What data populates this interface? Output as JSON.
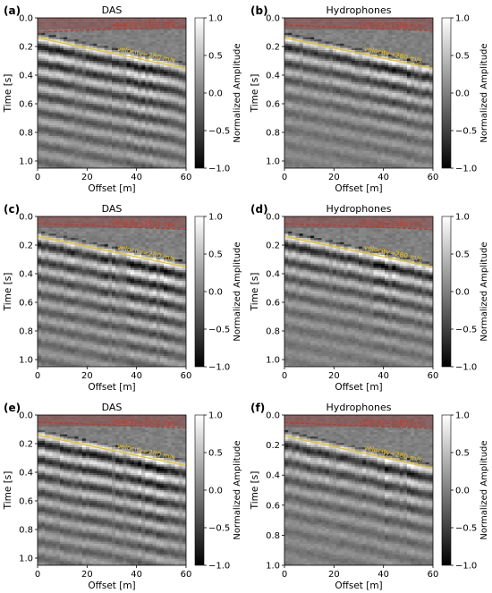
{
  "figure": {
    "xlabel": "Offset [m]",
    "ylabel": "Time [s]",
    "colorbar_label": "Normalized Amplitude",
    "colorbar_ticks": [
      "1.0",
      "0.5",
      "0.0",
      "−0.5",
      "−1.0"
    ],
    "colors": {
      "velocity_1500_line": "#c0392b",
      "velocity_280_line": "#e6c229",
      "background_gray": "#808080"
    }
  },
  "chart_data": [
    {
      "type": "heatmap",
      "panel": "(a)",
      "title": "DAS",
      "xlim": [
        0,
        60
      ],
      "ylim": [
        1.05,
        0.0
      ],
      "xticks": [
        0,
        20,
        40,
        60
      ],
      "yticks": [
        0.0,
        0.2,
        0.4,
        0.6,
        0.8,
        1.0
      ],
      "colorbar_range": [
        -1.0,
        1.0
      ],
      "annotations": [
        {
          "label": "velocity=1500 m/s",
          "x": [
            0,
            60
          ],
          "t": [
            0.1,
            0.06
          ]
        },
        {
          "label": "velocity=280 m/s",
          "x": [
            0,
            60
          ],
          "t": [
            0.14,
            0.355
          ]
        }
      ]
    },
    {
      "type": "heatmap",
      "panel": "(b)",
      "title": "Hydrophones",
      "xlim": [
        0,
        60
      ],
      "ylim": [
        1.05,
        0.0
      ],
      "xticks": [
        0,
        20,
        40,
        60
      ],
      "yticks": [
        0.0,
        0.2,
        0.4,
        0.6,
        0.8,
        1.0
      ],
      "colorbar_range": [
        -1.0,
        1.0
      ],
      "annotations": [
        {
          "label": "velocity=1500 m/s",
          "x": [
            0,
            60
          ],
          "t": [
            0.05,
            0.09
          ]
        },
        {
          "label": "velocity=280 m/s",
          "x": [
            0,
            60
          ],
          "t": [
            0.14,
            0.355
          ]
        }
      ]
    },
    {
      "type": "heatmap",
      "panel": "(c)",
      "title": "DAS",
      "xlim": [
        0,
        60
      ],
      "ylim": [
        1.05,
        0.0
      ],
      "xticks": [
        0,
        20,
        40,
        60
      ],
      "yticks": [
        0.0,
        0.2,
        0.4,
        0.6,
        0.8,
        1.0
      ],
      "colorbar_range": [
        -1.0,
        1.0
      ],
      "annotations": [
        {
          "label": "velocity=1500 m/s",
          "x": [
            0,
            60
          ],
          "t": [
            0.05,
            0.09
          ]
        },
        {
          "label": "velocity=280 m/s",
          "x": [
            0,
            60
          ],
          "t": [
            0.14,
            0.355
          ]
        }
      ]
    },
    {
      "type": "heatmap",
      "panel": "(d)",
      "title": "Hydrophones",
      "xlim": [
        0,
        60
      ],
      "ylim": [
        1.05,
        0.0
      ],
      "xticks": [
        0,
        20,
        40,
        60
      ],
      "yticks": [
        0.0,
        0.2,
        0.4,
        0.6,
        0.8,
        1.0
      ],
      "colorbar_range": [
        -1.0,
        1.0
      ],
      "annotations": [
        {
          "label": "velocity=1500 m/s",
          "x": [
            0,
            60
          ],
          "t": [
            0.05,
            0.09
          ]
        },
        {
          "label": "velocity=280 m/s",
          "x": [
            0,
            60
          ],
          "t": [
            0.14,
            0.355
          ]
        }
      ]
    },
    {
      "type": "heatmap",
      "panel": "(e)",
      "title": "DAS",
      "xlim": [
        0,
        60
      ],
      "ylim": [
        1.05,
        0.0
      ],
      "xticks": [
        0,
        20,
        40,
        60
      ],
      "yticks": [
        0.0,
        0.2,
        0.4,
        0.6,
        0.8,
        1.0
      ],
      "colorbar_range": [
        -1.0,
        1.0
      ],
      "annotations": [
        {
          "label": "velocity=1500 m/s",
          "x": [
            0,
            60
          ],
          "t": [
            0.05,
            0.09
          ]
        },
        {
          "label": "velocity=280 m/s",
          "x": [
            0,
            60
          ],
          "t": [
            0.14,
            0.355
          ]
        }
      ]
    },
    {
      "type": "heatmap",
      "panel": "(f)",
      "title": "Hydrophones",
      "xlim": [
        0,
        60
      ],
      "ylim": [
        1.0,
        0.0
      ],
      "xticks": [
        0,
        20,
        40,
        60
      ],
      "yticks": [
        0.0,
        0.2,
        0.4,
        0.6,
        0.8,
        1.0
      ],
      "colorbar_range": [
        -1.0,
        1.0
      ],
      "annotations": [
        {
          "label": "velocity=1500 m/s",
          "x": [
            0,
            60
          ],
          "t": [
            0.05,
            0.09
          ]
        },
        {
          "label": "velocity=280 m/s",
          "x": [
            0,
            60
          ],
          "t": [
            0.14,
            0.355
          ]
        }
      ]
    }
  ]
}
